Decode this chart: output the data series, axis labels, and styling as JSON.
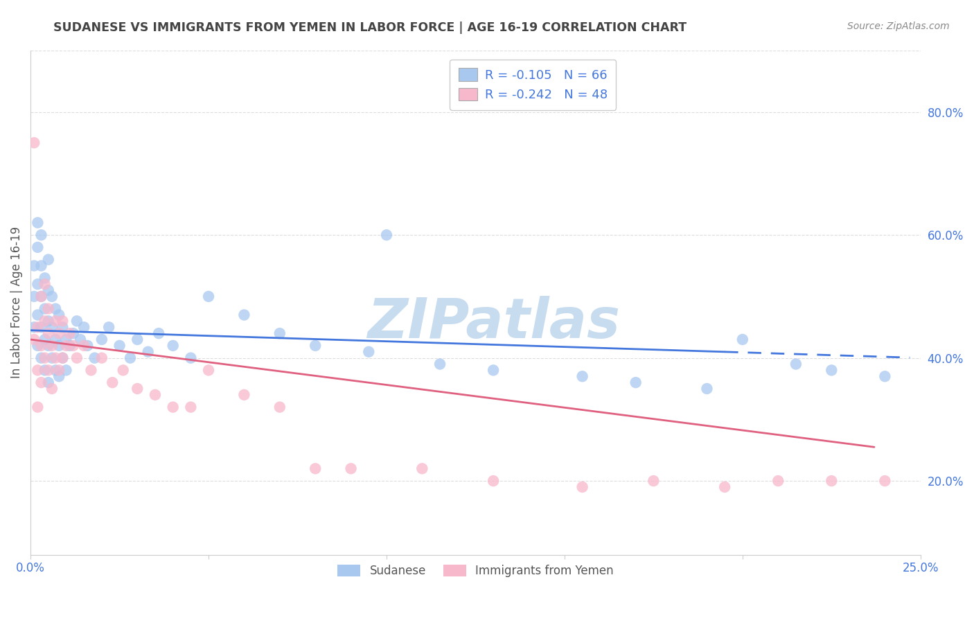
{
  "title": "SUDANESE VS IMMIGRANTS FROM YEMEN IN LABOR FORCE | AGE 16-19 CORRELATION CHART",
  "source": "Source: ZipAtlas.com",
  "ylabel": "In Labor Force | Age 16-19",
  "xlim": [
    0.0,
    0.25
  ],
  "ylim": [
    0.08,
    0.9
  ],
  "xticks": [
    0.0,
    0.05,
    0.1,
    0.15,
    0.2,
    0.25
  ],
  "xticklabels": [
    "0.0%",
    "",
    "",
    "",
    "",
    "25.0%"
  ],
  "yticks_right": [
    0.2,
    0.4,
    0.6,
    0.8
  ],
  "ytick_labels_right": [
    "20.0%",
    "40.0%",
    "60.0%",
    "80.0%"
  ],
  "blue_color": "#A8C8F0",
  "pink_color": "#F8B8CC",
  "blue_line_color": "#4477DD",
  "pink_line_color": "#E06080",
  "blue_R": -0.105,
  "blue_N": 66,
  "pink_R": -0.242,
  "pink_N": 48,
  "legend_text_color": "#4477DD",
  "watermark": "ZIPatlas",
  "watermark_color": "#C8DCF0",
  "blue_scatter_x": [
    0.001,
    0.001,
    0.001,
    0.002,
    0.002,
    0.002,
    0.002,
    0.002,
    0.003,
    0.003,
    0.003,
    0.003,
    0.003,
    0.004,
    0.004,
    0.004,
    0.004,
    0.005,
    0.005,
    0.005,
    0.005,
    0.005,
    0.006,
    0.006,
    0.006,
    0.007,
    0.007,
    0.007,
    0.008,
    0.008,
    0.008,
    0.009,
    0.009,
    0.01,
    0.01,
    0.011,
    0.012,
    0.013,
    0.014,
    0.015,
    0.016,
    0.018,
    0.02,
    0.022,
    0.025,
    0.028,
    0.03,
    0.033,
    0.036,
    0.04,
    0.045,
    0.05,
    0.06,
    0.07,
    0.08,
    0.095,
    0.1,
    0.115,
    0.13,
    0.155,
    0.17,
    0.19,
    0.2,
    0.215,
    0.225,
    0.24
  ],
  "blue_scatter_y": [
    0.45,
    0.5,
    0.55,
    0.42,
    0.47,
    0.52,
    0.58,
    0.62,
    0.4,
    0.45,
    0.5,
    0.55,
    0.6,
    0.38,
    0.43,
    0.48,
    0.53,
    0.36,
    0.42,
    0.46,
    0.51,
    0.56,
    0.4,
    0.45,
    0.5,
    0.38,
    0.43,
    0.48,
    0.37,
    0.42,
    0.47,
    0.4,
    0.45,
    0.38,
    0.43,
    0.42,
    0.44,
    0.46,
    0.43,
    0.45,
    0.42,
    0.4,
    0.43,
    0.45,
    0.42,
    0.4,
    0.43,
    0.41,
    0.44,
    0.42,
    0.4,
    0.5,
    0.47,
    0.44,
    0.42,
    0.41,
    0.6,
    0.39,
    0.38,
    0.37,
    0.36,
    0.35,
    0.43,
    0.39,
    0.38,
    0.37
  ],
  "pink_scatter_x": [
    0.001,
    0.001,
    0.002,
    0.002,
    0.002,
    0.003,
    0.003,
    0.003,
    0.004,
    0.004,
    0.004,
    0.005,
    0.005,
    0.005,
    0.006,
    0.006,
    0.007,
    0.007,
    0.008,
    0.008,
    0.009,
    0.009,
    0.01,
    0.011,
    0.012,
    0.013,
    0.015,
    0.017,
    0.02,
    0.023,
    0.026,
    0.03,
    0.035,
    0.04,
    0.045,
    0.05,
    0.06,
    0.07,
    0.08,
    0.09,
    0.11,
    0.13,
    0.155,
    0.175,
    0.195,
    0.21,
    0.225,
    0.24
  ],
  "pink_scatter_y": [
    0.75,
    0.43,
    0.38,
    0.32,
    0.45,
    0.42,
    0.36,
    0.5,
    0.4,
    0.46,
    0.52,
    0.44,
    0.38,
    0.48,
    0.42,
    0.35,
    0.46,
    0.4,
    0.44,
    0.38,
    0.46,
    0.4,
    0.42,
    0.44,
    0.42,
    0.4,
    0.42,
    0.38,
    0.4,
    0.36,
    0.38,
    0.35,
    0.34,
    0.32,
    0.32,
    0.38,
    0.34,
    0.32,
    0.22,
    0.22,
    0.22,
    0.2,
    0.19,
    0.2,
    0.19,
    0.2,
    0.2,
    0.2
  ],
  "grid_color": "#DDDDDD",
  "bg_color": "#FFFFFF",
  "label_color": "#4477DD",
  "title_color": "#444444"
}
